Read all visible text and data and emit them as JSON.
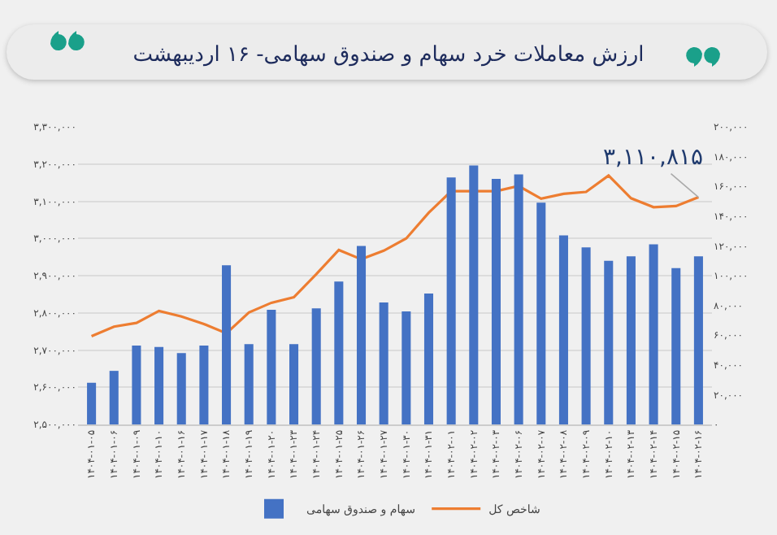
{
  "chart_data": {
    "type": "bar",
    "title": "ارزش معاملات خرد سهام و صندوق سهامی- ۱۶ اردیبهشت",
    "categories": [
      "۱۴۰۴-۰۱-۰۵",
      "۱۴۰۴-۰۱-۰۶",
      "۱۴۰۴-۰۱-۰۹",
      "۱۴۰۴-۰۱-۱۰",
      "۱۴۰۴-۰۱-۱۶",
      "۱۴۰۴-۰۱-۱۷",
      "۱۴۰۴-۰۱-۱۸",
      "۱۴۰۴-۰۱-۱۹",
      "۱۴۰۴-۰۱-۲۰",
      "۱۴۰۴-۰۱-۲۳",
      "۱۴۰۴-۰۱-۲۴",
      "۱۴۰۴-۰۱-۲۵",
      "۱۴۰۴-۰۱-۲۶",
      "۱۴۰۴-۰۱-۲۷",
      "۱۴۰۴-۰۱-۳۰",
      "۱۴۰۴-۰۱-۳۱",
      "۱۴۰۴-۰۲-۰۱",
      "۱۴۰۴-۰۲-۰۲",
      "۱۴۰۴-۰۲-۰۳",
      "۱۴۰۴-۰۲-۰۶",
      "۱۴۰۴-۰۲-۰۷",
      "۱۴۰۴-۰۲-۰۸",
      "۱۴۰۴-۰۲-۰۹",
      "۱۴۰۴-۰۲-۱۰",
      "۱۴۰۴-۰۲-۱۳",
      "۱۴۰۴-۰۲-۱۴",
      "۱۴۰۴-۰۲-۱۵",
      "۱۴۰۴-۰۲-۱۶"
    ],
    "series": [
      {
        "name": "سهام و صندوق سهامی",
        "axis": "y2",
        "color": "#4472c4",
        "values": [
          28000,
          36000,
          53000,
          52000,
          48000,
          53000,
          107000,
          54000,
          77000,
          54000,
          78000,
          96000,
          120000,
          82000,
          76000,
          88000,
          166000,
          174000,
          165000,
          168000,
          149000,
          127000,
          119000,
          110000,
          113000,
          121000,
          105000,
          113000
        ]
      },
      {
        "name": "شاخص کل",
        "type": "line",
        "axis": "y",
        "color": "#ed7d31",
        "values": [
          2737000,
          2763000,
          2773000,
          2805000,
          2790000,
          2770000,
          2745000,
          2801000,
          2827000,
          2842000,
          2904000,
          2969000,
          2944000,
          2967000,
          3000000,
          3069000,
          3127000,
          3127000,
          3127000,
          3141000,
          3107000,
          3120000,
          3125000,
          3169000,
          3108000,
          3084000,
          3087000,
          3110815
        ]
      }
    ],
    "ylim": [
      2500000,
      3300000
    ],
    "yticks": [
      {
        "value": 2500000,
        "label": "۲,۵۰۰,۰۰۰"
      },
      {
        "value": 2600000,
        "label": "۲,۶۰۰,۰۰۰"
      },
      {
        "value": 2700000,
        "label": "۲,۷۰۰,۰۰۰"
      },
      {
        "value": 2800000,
        "label": "۲,۸۰۰,۰۰۰"
      },
      {
        "value": 2900000,
        "label": "۲,۹۰۰,۰۰۰"
      },
      {
        "value": 3000000,
        "label": "۳,۰۰۰,۰۰۰"
      },
      {
        "value": 3100000,
        "label": "۳,۱۰۰,۰۰۰"
      },
      {
        "value": 3200000,
        "label": "۳,۲۰۰,۰۰۰"
      },
      {
        "value": 3300000,
        "label": "۳,۳۰۰,۰۰۰"
      }
    ],
    "y2lim": [
      0,
      200000
    ],
    "y2ticks": [
      {
        "value": 0,
        "label": "۰"
      },
      {
        "value": 20000,
        "label": "۲۰,۰۰۰"
      },
      {
        "value": 40000,
        "label": "۴۰,۰۰۰"
      },
      {
        "value": 60000,
        "label": "۶۰,۰۰۰"
      },
      {
        "value": 80000,
        "label": "۸۰,۰۰۰"
      },
      {
        "value": 100000,
        "label": "۱۰۰,۰۰۰"
      },
      {
        "value": 120000,
        "label": "۱۲۰,۰۰۰"
      },
      {
        "value": 140000,
        "label": "۱۴۰,۰۰۰"
      },
      {
        "value": 160000,
        "label": "۱۶۰,۰۰۰"
      },
      {
        "value": 180000,
        "label": "۱۸۰,۰۰۰"
      },
      {
        "value": 200000,
        "label": "۲۰۰,۰۰۰"
      }
    ],
    "annotations": [
      {
        "text": "۳,۱۱۰,۸۱۵",
        "x": "۱۴۰۴-۰۲-۱۶",
        "y": 3110815
      }
    ],
    "grid": "y",
    "legend": "bottom",
    "marker": "none",
    "line_style": "solid"
  }
}
